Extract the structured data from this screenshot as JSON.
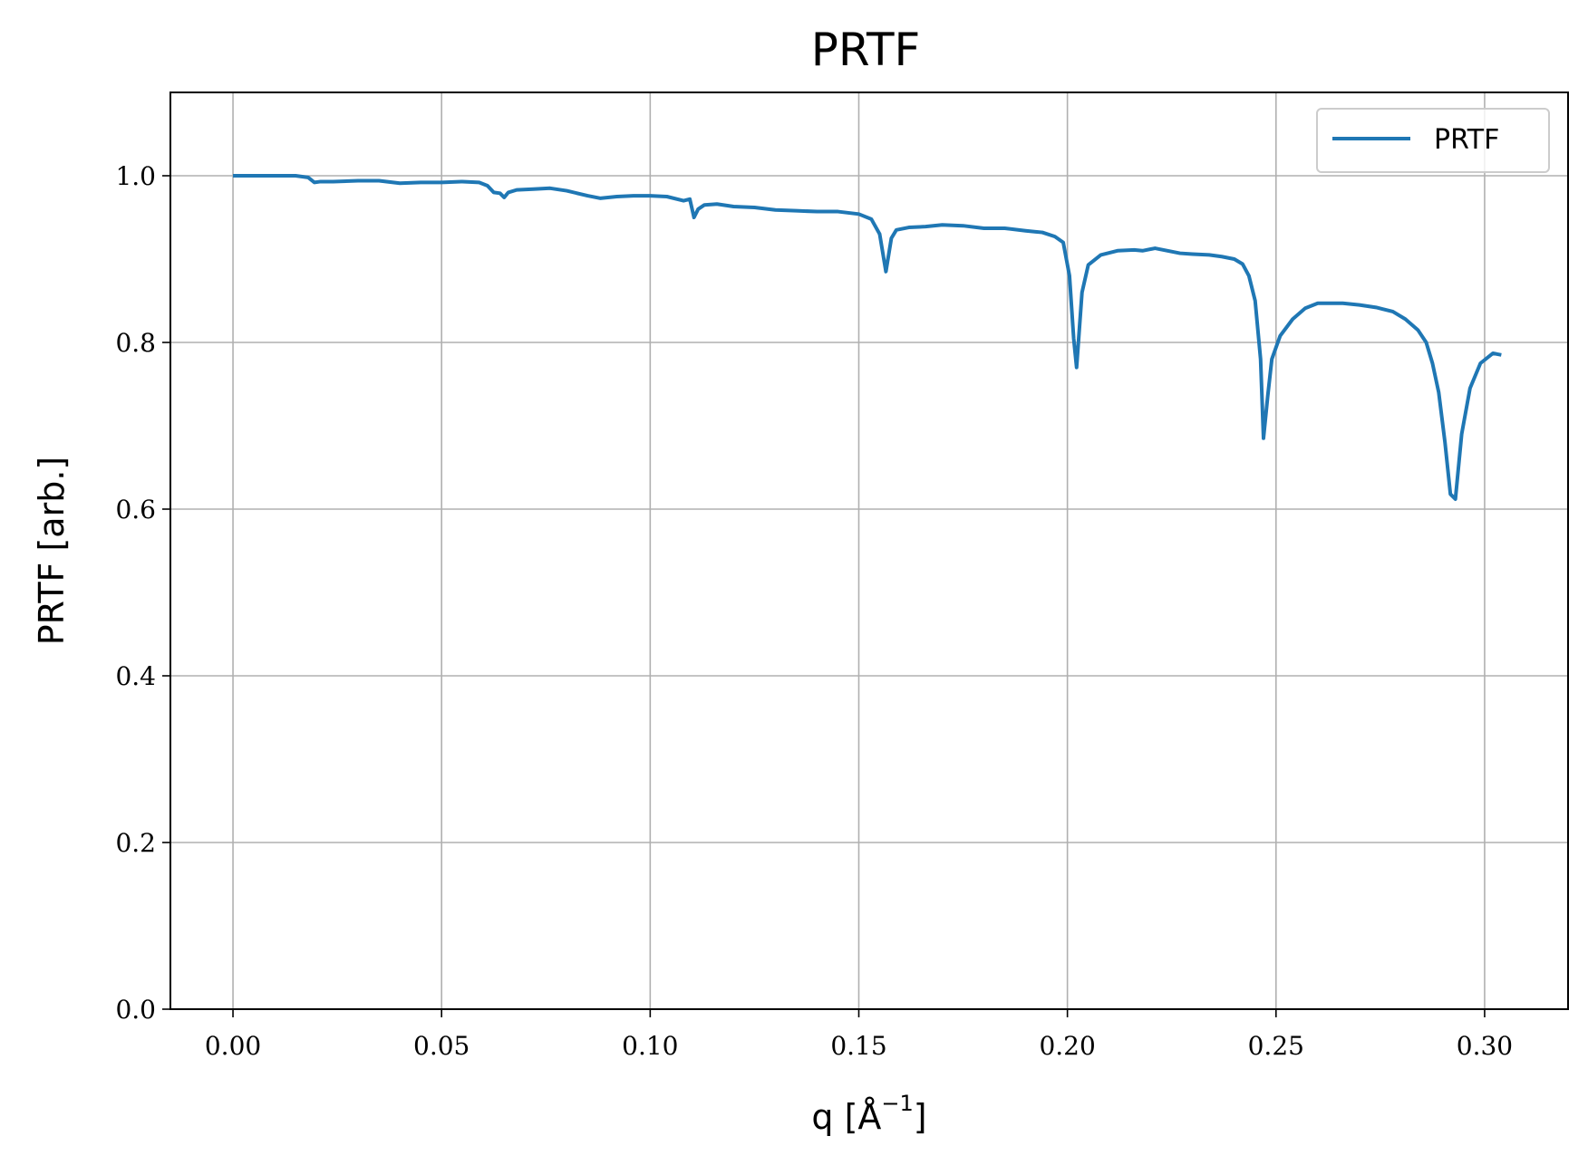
{
  "chart_data": {
    "type": "line",
    "title": "PRTF",
    "xlabel": "q [Å",
    "xlabel_sup": "−1",
    "xlabel_end": "]",
    "ylabel": "PRTF [arb.]",
    "xlim": [
      -0.015,
      0.32
    ],
    "ylim": [
      0.0,
      1.1
    ],
    "xticks": [
      0.0,
      0.05,
      0.1,
      0.15,
      0.2,
      0.25,
      0.3
    ],
    "xtick_labels": [
      "0.00",
      "0.05",
      "0.10",
      "0.15",
      "0.20",
      "0.25",
      "0.30"
    ],
    "yticks": [
      0.0,
      0.2,
      0.4,
      0.6,
      0.8,
      1.0
    ],
    "ytick_labels": [
      "0.0",
      "0.2",
      "0.4",
      "0.6",
      "0.8",
      "1.0"
    ],
    "grid": true,
    "legend_position": "top-right",
    "series": [
      {
        "name": "PRTF",
        "color": "#1f77b4",
        "x": [
          0.0,
          0.005,
          0.01,
          0.015,
          0.018,
          0.0195,
          0.021,
          0.024,
          0.03,
          0.035,
          0.04,
          0.045,
          0.05,
          0.055,
          0.059,
          0.061,
          0.0625,
          0.064,
          0.065,
          0.066,
          0.068,
          0.072,
          0.076,
          0.08,
          0.085,
          0.088,
          0.092,
          0.096,
          0.1,
          0.104,
          0.108,
          0.1095,
          0.1105,
          0.1115,
          0.113,
          0.116,
          0.12,
          0.125,
          0.13,
          0.135,
          0.14,
          0.145,
          0.15,
          0.153,
          0.155,
          0.1565,
          0.1578,
          0.159,
          0.162,
          0.166,
          0.17,
          0.175,
          0.18,
          0.185,
          0.19,
          0.194,
          0.197,
          0.199,
          0.2005,
          0.2015,
          0.2022,
          0.2035,
          0.205,
          0.208,
          0.212,
          0.216,
          0.218,
          0.221,
          0.224,
          0.227,
          0.23,
          0.234,
          0.237,
          0.24,
          0.242,
          0.2435,
          0.245,
          0.2463,
          0.247,
          0.248,
          0.249,
          0.251,
          0.254,
          0.257,
          0.26,
          0.263,
          0.266,
          0.27,
          0.274,
          0.278,
          0.281,
          0.284,
          0.286,
          0.2875,
          0.289,
          0.2905,
          0.2918,
          0.293,
          0.2945,
          0.2965,
          0.299,
          0.302,
          0.304
        ],
        "values": [
          1.0,
          1.0,
          1.0,
          1.0,
          0.998,
          0.992,
          0.993,
          0.993,
          0.994,
          0.994,
          0.991,
          0.992,
          0.992,
          0.993,
          0.992,
          0.988,
          0.98,
          0.979,
          0.974,
          0.98,
          0.983,
          0.984,
          0.985,
          0.982,
          0.976,
          0.973,
          0.975,
          0.976,
          0.976,
          0.975,
          0.97,
          0.972,
          0.95,
          0.96,
          0.965,
          0.966,
          0.963,
          0.962,
          0.959,
          0.958,
          0.957,
          0.957,
          0.954,
          0.948,
          0.93,
          0.885,
          0.925,
          0.935,
          0.938,
          0.939,
          0.941,
          0.94,
          0.937,
          0.937,
          0.934,
          0.932,
          0.927,
          0.92,
          0.88,
          0.805,
          0.77,
          0.86,
          0.893,
          0.905,
          0.91,
          0.911,
          0.91,
          0.913,
          0.91,
          0.907,
          0.906,
          0.905,
          0.903,
          0.9,
          0.894,
          0.88,
          0.85,
          0.78,
          0.685,
          0.735,
          0.78,
          0.808,
          0.828,
          0.841,
          0.847,
          0.847,
          0.847,
          0.845,
          0.842,
          0.837,
          0.828,
          0.815,
          0.8,
          0.775,
          0.74,
          0.68,
          0.618,
          0.612,
          0.69,
          0.745,
          0.775,
          0.787,
          0.785
        ]
      }
    ]
  }
}
